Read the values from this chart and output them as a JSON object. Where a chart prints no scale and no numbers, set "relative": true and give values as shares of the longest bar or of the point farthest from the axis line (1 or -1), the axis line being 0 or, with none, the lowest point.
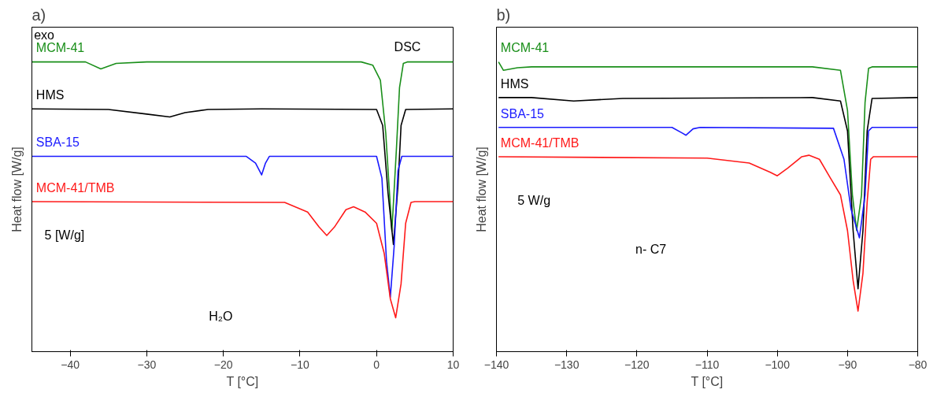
{
  "chart_data": [
    {
      "type": "line",
      "title": "a)",
      "xlabel": "T [°C]",
      "ylabel": "Heat flow [W/g]",
      "relative": true,
      "xlim": [
        -45,
        10
      ],
      "xticks": [
        -40,
        -30,
        -20,
        -10,
        0,
        10
      ],
      "tick_labels": "x",
      "grid": false,
      "legend": false,
      "line_style": "solid",
      "marker": "none",
      "annotations": [
        "exo",
        "DSC",
        "5 [W/g]",
        "H₂O"
      ],
      "series": [
        {
          "name": "MCM-41",
          "color": "#1a8f1a",
          "x": [
            -45,
            -38,
            -36,
            -34,
            -30,
            -2,
            -0.5,
            0.5,
            1.2,
            2,
            2.6,
            3,
            3.5,
            4,
            10
          ],
          "values": [
            1.0,
            1.0,
            0.976,
            0.995,
            1.0,
            1.0,
            0.989,
            0.937,
            0.755,
            0.416,
            0.703,
            0.912,
            0.995,
            1.0,
            1.0
          ]
        },
        {
          "name": "HMS",
          "color": "#000000",
          "x": [
            -45,
            -35,
            -30,
            -27,
            -25,
            -22,
            -15,
            0,
            0.8,
            1.5,
            2.2,
            2.8,
            3.2,
            3.8,
            10
          ],
          "values": [
            0.838,
            0.836,
            0.82,
            0.81,
            0.825,
            0.836,
            0.838,
            0.836,
            0.781,
            0.547,
            0.37,
            0.573,
            0.781,
            0.836,
            0.838
          ]
        },
        {
          "name": "SBA-15",
          "color": "#1a1aff",
          "x": [
            -45,
            -17,
            -15.8,
            -15,
            -14.5,
            -14,
            0,
            0.7,
            1.3,
            1.8,
            2.3,
            2.8,
            3.3,
            10
          ],
          "values": [
            0.674,
            0.674,
            0.651,
            0.61,
            0.651,
            0.674,
            0.674,
            0.599,
            0.312,
            0.188,
            0.364,
            0.625,
            0.674,
            0.674
          ]
        },
        {
          "name": "MCM-41/TMB",
          "color": "#ff1a1a",
          "x": [
            -45,
            -12,
            -9,
            -7.5,
            -6.5,
            -5.5,
            -4,
            -3,
            -1.5,
            0,
            1,
            1.8,
            2.5,
            3.2,
            3.8,
            4.5,
            5,
            10
          ],
          "values": [
            0.518,
            0.515,
            0.482,
            0.43,
            0.401,
            0.43,
            0.49,
            0.5,
            0.482,
            0.443,
            0.339,
            0.182,
            0.117,
            0.234,
            0.443,
            0.515,
            0.518,
            0.518
          ]
        }
      ]
    },
    {
      "type": "line",
      "title": "b)",
      "xlabel": "T [°C]",
      "ylabel": "Heat flow [W/g]",
      "relative": true,
      "xlim": [
        -140,
        -80
      ],
      "xticks": [
        -140,
        -130,
        -120,
        -110,
        -100,
        -90,
        -80
      ],
      "tick_labels": "x",
      "grid": false,
      "legend": false,
      "line_style": "solid",
      "marker": "none",
      "annotations": [
        "5 W/g",
        "n- C7"
      ],
      "series": [
        {
          "name": "MCM-41",
          "color": "#1a8f1a",
          "x": [
            -139.7,
            -139,
            -137,
            -135,
            -95,
            -91,
            -90,
            -89.3,
            -88.7,
            -88,
            -87.5,
            -87,
            -86.5,
            -80
          ],
          "values": [
            1.0,
            0.971,
            0.98,
            0.983,
            0.983,
            0.971,
            0.833,
            0.541,
            0.418,
            0.541,
            0.86,
            0.978,
            0.983,
            0.983
          ]
        },
        {
          "name": "HMS",
          "color": "#000000",
          "x": [
            -139.7,
            -135,
            -129,
            -122,
            -95,
            -91,
            -90,
            -89.2,
            -88.5,
            -87.8,
            -87.2,
            -86.5,
            -80
          ],
          "values": [
            0.877,
            0.877,
            0.865,
            0.874,
            0.877,
            0.865,
            0.762,
            0.418,
            0.217,
            0.418,
            0.762,
            0.874,
            0.877
          ]
        },
        {
          "name": "SBA-15",
          "color": "#1a1aff",
          "x": [
            -139.7,
            -115,
            -113.5,
            -113,
            -112,
            -111,
            -92,
            -90.5,
            -89.5,
            -88.3,
            -87.5,
            -87,
            -86.5,
            -80
          ],
          "values": [
            0.774,
            0.774,
            0.754,
            0.747,
            0.769,
            0.774,
            0.771,
            0.664,
            0.492,
            0.393,
            0.541,
            0.762,
            0.774,
            0.774
          ]
        },
        {
          "name": "MCM-41/TMB",
          "color": "#ff1a1a",
          "x": [
            -139.7,
            -110,
            -104,
            -101,
            -100,
            -98.5,
            -96.5,
            -95.5,
            -94,
            -92.5,
            -91,
            -90,
            -89.2,
            -88.5,
            -87.8,
            -87.2,
            -86.7,
            -86.3,
            -80
          ],
          "values": [
            0.673,
            0.668,
            0.651,
            0.619,
            0.607,
            0.634,
            0.673,
            0.678,
            0.664,
            0.602,
            0.541,
            0.418,
            0.246,
            0.14,
            0.27,
            0.516,
            0.664,
            0.673,
            0.673
          ]
        }
      ]
    }
  ]
}
